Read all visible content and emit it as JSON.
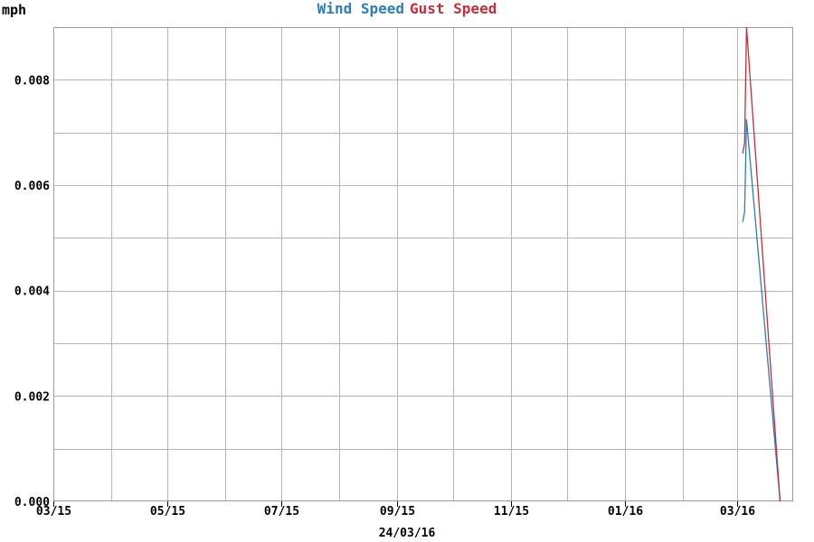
{
  "chart_data": {
    "type": "line",
    "ylabel": "mph",
    "date_label": "24/03/16",
    "x_tick_labels": [
      "03/15",
      "05/15",
      "07/15",
      "09/15",
      "11/15",
      "01/16",
      "03/16"
    ],
    "x_tick_dates": [
      "2015-03-01",
      "2015-05-01",
      "2015-07-01",
      "2015-09-01",
      "2015-11-01",
      "2016-01-01",
      "2016-03-01"
    ],
    "x_grid_dates": [
      "2015-04-01",
      "2015-05-01",
      "2015-06-01",
      "2015-07-01",
      "2015-08-01",
      "2015-09-01",
      "2015-10-01",
      "2015-11-01",
      "2015-12-01",
      "2016-01-01",
      "2016-02-01",
      "2016-03-01"
    ],
    "xlim": [
      "2015-03-01",
      "2016-03-31"
    ],
    "y_ticks": [
      0.0,
      0.002,
      0.004,
      0.006,
      0.008
    ],
    "y_tick_labels": [
      "0.000",
      "0.002",
      "0.004",
      "0.006",
      "0.008"
    ],
    "ylim": [
      0,
      0.009
    ],
    "grid": true,
    "legend_position": "top-center",
    "series": [
      {
        "name": "Wind Speed",
        "color": "#2e7db8",
        "x": [
          "2016-03-04",
          "2016-03-05",
          "2016-03-06",
          "2016-03-24"
        ],
        "y": [
          0.0053,
          0.0055,
          0.00725,
          0.0
        ]
      },
      {
        "name": "Gust Speed",
        "color": "#c0303a",
        "x": [
          "2016-03-04",
          "2016-03-05",
          "2016-03-06",
          "2016-03-24"
        ],
        "y": [
          0.0066,
          0.0068,
          0.009,
          0.0
        ]
      }
    ]
  }
}
